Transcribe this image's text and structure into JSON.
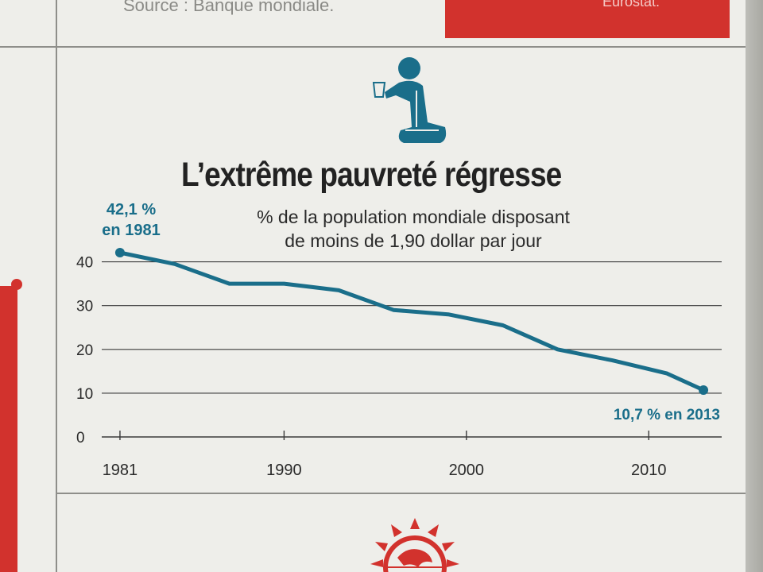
{
  "source_line": "Source : Banque mondiale.",
  "red_box_text": "Eurostat.",
  "icon": "kneeling-beggar-icon",
  "footer_icon": "globe-sun-icon",
  "colors": {
    "line": "#1a6e8a",
    "accent_red": "#d2322d"
  },
  "chart_data": {
    "type": "line",
    "title": "L’extrême pauvreté régresse",
    "subtitle_lines": [
      "% de la population mondiale disposant",
      "de moins de 1,90 dollar par jour"
    ],
    "xlabel": "",
    "ylabel": "",
    "x_ticks": [
      "1981",
      "1990",
      "2000",
      "2010"
    ],
    "y_ticks": [
      "0",
      "10",
      "20",
      "30",
      "40"
    ],
    "ylim": [
      0,
      45
    ],
    "xlim": [
      1980,
      2014
    ],
    "grid": "horizontal",
    "series": [
      {
        "x": [
          1981,
          1984,
          1987,
          1990,
          1993,
          1996,
          1999,
          2002,
          2005,
          2008,
          2011,
          2013
        ],
        "values": [
          42.1,
          39.5,
          35.0,
          35.0,
          33.5,
          29.0,
          28.0,
          25.5,
          20.0,
          17.5,
          14.5,
          10.7
        ]
      }
    ],
    "annotations": [
      {
        "lines": [
          "42,1 %",
          "en 1981"
        ]
      },
      {
        "lines": [
          "10,7 % en 2013"
        ]
      }
    ]
  }
}
